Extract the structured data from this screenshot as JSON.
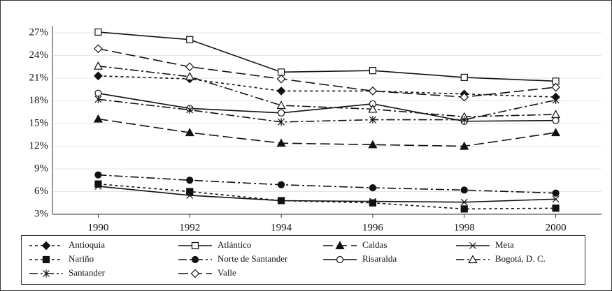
{
  "chart_data": {
    "type": "line",
    "x": [
      1990,
      1992,
      1994,
      1996,
      1998,
      2000
    ],
    "xlim": [
      1989,
      2001
    ],
    "ylim": [
      3,
      27
    ],
    "yticks": [
      {
        "value": 3,
        "label": "3%"
      },
      {
        "value": 6,
        "label": "6%"
      },
      {
        "value": 9,
        "label": "9%"
      },
      {
        "value": 12,
        "label": "12%"
      },
      {
        "value": 15,
        "label": "15%"
      },
      {
        "value": 18,
        "label": "18%"
      },
      {
        "value": 21,
        "label": "21%"
      },
      {
        "value": 24,
        "label": "24%"
      },
      {
        "value": 27,
        "label": "27%"
      }
    ],
    "grid": true,
    "legend": "bottom",
    "series": [
      {
        "name": "Antioquia",
        "color": "#111",
        "dash": "4,4",
        "marker": "diamond-filled",
        "values": [
          21.3,
          20.9,
          19.3,
          19.3,
          18.9,
          18.5
        ]
      },
      {
        "name": "Atlántico",
        "color": "#111",
        "dash": "none",
        "marker": "square-open",
        "values": [
          27.1,
          26.1,
          21.8,
          22.0,
          21.1,
          20.6
        ]
      },
      {
        "name": "Caldas",
        "color": "#111",
        "dash": "14,6",
        "marker": "triangle-filled",
        "values": [
          15.6,
          13.8,
          12.4,
          12.2,
          12.0,
          13.8
        ]
      },
      {
        "name": "Meta",
        "color": "#111",
        "dash": "none",
        "marker": "x",
        "values": [
          6.7,
          5.5,
          4.8,
          4.7,
          4.6,
          5.0
        ]
      },
      {
        "name": "Nariño",
        "color": "#111",
        "dash": "4,4",
        "marker": "square-filled",
        "values": [
          7.0,
          6.0,
          4.8,
          4.5,
          3.7,
          3.8
        ]
      },
      {
        "name": "Norte de Santander",
        "color": "#111",
        "dash": "12,4,3,4",
        "marker": "circle-filled",
        "values": [
          8.2,
          7.5,
          6.9,
          6.5,
          6.2,
          5.8
        ]
      },
      {
        "name": "Risaralda",
        "color": "#111",
        "dash": "none",
        "marker": "circle-open",
        "values": [
          19.0,
          17.0,
          16.4,
          17.6,
          15.3,
          15.4
        ]
      },
      {
        "name": "Bogotá, D. C.",
        "color": "#111",
        "dash": "12,4,3,4",
        "marker": "triangle-open",
        "values": [
          22.6,
          21.2,
          17.4,
          16.9,
          15.9,
          16.2
        ]
      },
      {
        "name": "Santander",
        "color": "#111",
        "dash": "12,4,3,4",
        "marker": "asterisk",
        "values": [
          18.2,
          16.8,
          15.2,
          15.5,
          15.5,
          18.1
        ]
      },
      {
        "name": "Valle",
        "color": "#111",
        "dash": "14,6",
        "marker": "diamond-open",
        "values": [
          24.9,
          22.5,
          20.9,
          19.3,
          18.5,
          19.8
        ]
      }
    ]
  }
}
